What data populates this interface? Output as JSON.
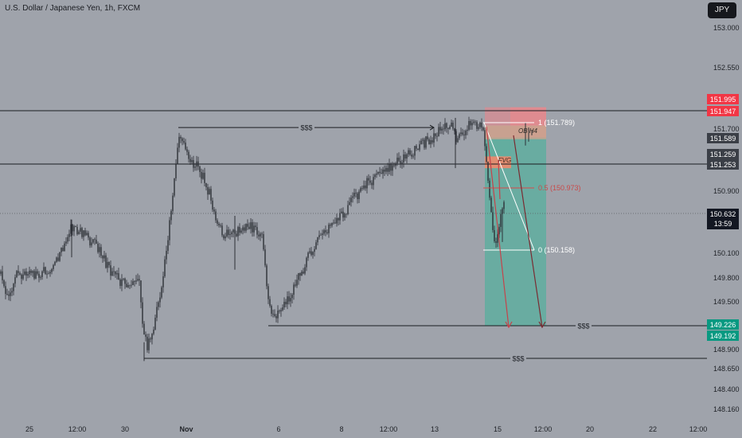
{
  "header": {
    "title": "U.S. Dollar / Japanese Yen, 1h, FXCM",
    "currency_button": "JPY"
  },
  "colors": {
    "background": "#9fa3ab",
    "candle": "#2c2f36",
    "red_zone": "#d98b92",
    "red_zone_strong": "#e48a8f",
    "green_zone": "#5fae9f",
    "fvg": "#f08a6c",
    "ob": "#c7a58f",
    "arrow": "#c6424a",
    "label_red": "#f23645",
    "label_green": "#089981",
    "label_dark": "#131722",
    "label_grey": "#3b3f47"
  },
  "chart_data": {
    "type": "candlestick",
    "symbol": "USDJPY",
    "interval": "1h",
    "ylim": [
      148.16,
      153.0
    ],
    "y_ticks": [
      "153.000",
      "152.550",
      "151.700",
      "150.900",
      "150.100",
      "149.800",
      "149.500",
      "148.900",
      "148.650",
      "148.400",
      "148.160"
    ],
    "x_ticks": [
      "25",
      "12:00",
      "30",
      "Nov",
      "6",
      "8",
      "12:00",
      "13",
      "15",
      "12:00",
      "20",
      "22",
      "12:00"
    ],
    "bold_x_ticks": [
      "Nov"
    ],
    "price_path": [
      [
        0,
        149.85
      ],
      [
        12,
        149.5
      ],
      [
        20,
        149.88
      ],
      [
        40,
        149.82
      ],
      [
        60,
        149.9
      ],
      [
        75,
        150.1
      ],
      [
        90,
        150.45
      ],
      [
        105,
        150.35
      ],
      [
        125,
        150.15
      ],
      [
        140,
        149.85
      ],
      [
        160,
        149.7
      ],
      [
        175,
        149.75
      ],
      [
        180,
        149.15
      ],
      [
        185,
        148.95
      ],
      [
        195,
        149.3
      ],
      [
        205,
        149.8
      ],
      [
        212,
        150.4
      ],
      [
        218,
        151.0
      ],
      [
        225,
        151.6
      ],
      [
        230,
        151.55
      ],
      [
        238,
        151.3
      ],
      [
        250,
        151.2
      ],
      [
        262,
        150.9
      ],
      [
        270,
        150.6
      ],
      [
        280,
        150.35
      ],
      [
        300,
        150.4
      ],
      [
        315,
        150.45
      ],
      [
        330,
        150.3
      ],
      [
        336,
        149.5
      ],
      [
        342,
        149.3
      ],
      [
        360,
        149.5
      ],
      [
        380,
        149.9
      ],
      [
        400,
        150.3
      ],
      [
        420,
        150.5
      ],
      [
        440,
        150.75
      ],
      [
        460,
        151.0
      ],
      [
        490,
        151.2
      ],
      [
        510,
        151.35
      ],
      [
        530,
        151.5
      ],
      [
        550,
        151.65
      ],
      [
        568,
        151.8
      ],
      [
        572,
        151.55
      ],
      [
        590,
        151.75
      ],
      [
        607,
        151.72
      ],
      [
        612,
        151.1
      ],
      [
        618,
        150.55
      ],
      [
        622,
        150.25
      ],
      [
        628,
        150.55
      ],
      [
        633,
        150.7
      ]
    ],
    "horizontal_levels": [
      {
        "price": 151.947,
        "style": "solid"
      },
      {
        "price": 151.253,
        "style": "solid"
      },
      {
        "price": 150.632,
        "style": "dotted"
      }
    ],
    "liquidity_lines": [
      {
        "label": "$$$",
        "price": 151.72
      },
      {
        "label": "$$$",
        "price": 149.226
      },
      {
        "label": "$$$",
        "price": 148.78
      }
    ],
    "fib": {
      "levels": [
        {
          "label": "1 (151.789)",
          "value": 151.789
        },
        {
          "label": "0.5 (150.973)",
          "value": 150.973
        },
        {
          "label": "0 (150.158)",
          "value": 150.158
        }
      ]
    },
    "zones": [
      {
        "label": "FVG",
        "top": 151.33,
        "bottom": 151.22
      },
      {
        "label": "OB H4",
        "top": 151.79,
        "bottom": 151.589
      }
    ],
    "price_labels": [
      {
        "value": "151.995",
        "color": "red"
      },
      {
        "value": "151.947",
        "color": "red"
      },
      {
        "value": "151.589",
        "color": "grey"
      },
      {
        "value": "151.259",
        "color": "grey"
      },
      {
        "value": "151.253",
        "color": "grey"
      },
      {
        "value": "150.632",
        "sub": "13:59",
        "color": "dark"
      },
      {
        "value": "149.226",
        "color": "green"
      },
      {
        "value": "149.192",
        "color": "green"
      }
    ]
  }
}
